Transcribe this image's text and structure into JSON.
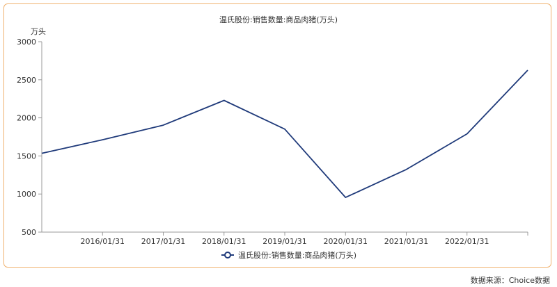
{
  "chart_data": {
    "type": "line",
    "title": "温氏股份:销售数量:商品肉猪(万头)",
    "unit_label": "万头",
    "x": [
      "2015/01/31",
      "2016/01/31",
      "2017/01/31",
      "2018/01/31",
      "2019/01/31",
      "2020/01/31",
      "2021/01/31",
      "2022/01/31",
      "2023/01/31"
    ],
    "x_tick_labels": [
      "2016/01/31",
      "2017/01/31",
      "2018/01/31",
      "2019/01/31",
      "2020/01/31",
      "2021/01/31",
      "2022/01/31"
    ],
    "series": [
      {
        "name": "温氏股份:销售数量:商品肉猪(万头)",
        "color": "#1f3a7a",
        "values": [
          1535,
          1713,
          1904,
          2229,
          1852,
          955,
          1322,
          1790,
          2626
        ]
      }
    ],
    "ylim": [
      500,
      3000
    ],
    "y_ticks": [
      500,
      1000,
      1500,
      2000,
      2500,
      3000
    ],
    "grid": false,
    "legend_position": "bottom-center"
  },
  "source": "数据来源：Choice数据"
}
